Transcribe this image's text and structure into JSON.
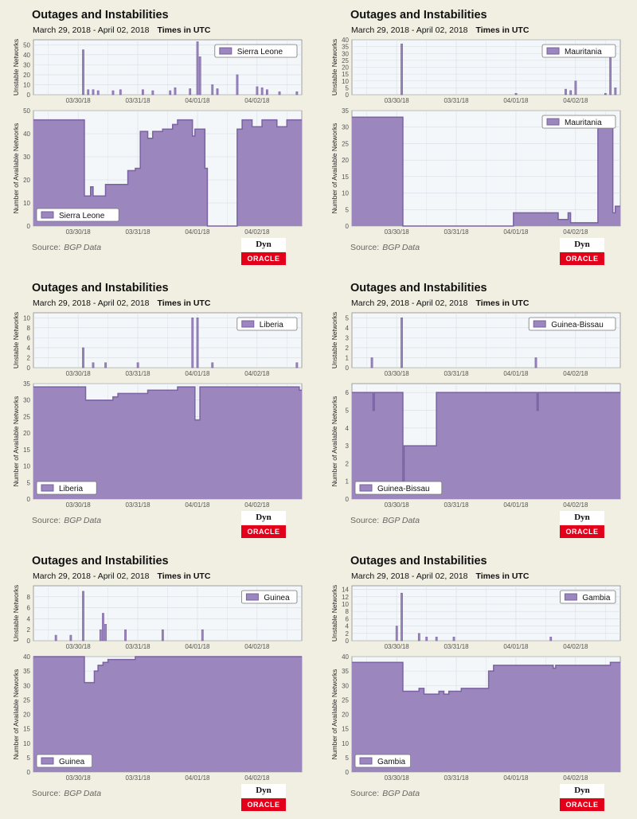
{
  "colors": {
    "fill": "#9b86bd",
    "stroke": "#7a62a3",
    "plot_bg": "#f4f7fa",
    "grid": "#d6dde6"
  },
  "panels": [
    {
      "title": "Outages and Instabilities",
      "date_range": "March 29, 2018 - April 02, 2018",
      "timezone": "Times in UTC",
      "source_label": "Source:",
      "source_value": "BGP Data",
      "logo_dyn": "Dyn",
      "logo_oracle": "ORACLE",
      "country": "Sierra Leone"
    },
    {
      "title": "Outages and Instabilities",
      "date_range": "March 29, 2018 - April 02, 2018",
      "timezone": "Times in UTC",
      "source_label": "Source:",
      "source_value": "BGP Data",
      "logo_dyn": "Dyn",
      "logo_oracle": "ORACLE",
      "country": "Mauritania"
    },
    {
      "title": "Outages and Instabilities",
      "date_range": "March 29, 2018 - April 02, 2018",
      "timezone": "Times in UTC",
      "source_label": "Source:",
      "source_value": "BGP Data",
      "logo_dyn": "Dyn",
      "logo_oracle": "ORACLE",
      "country": "Liberia"
    },
    {
      "title": "Outages and Instabilities",
      "date_range": "March 29, 2018 - April 02, 2018",
      "timezone": "Times in UTC",
      "source_label": "Source:",
      "source_value": "BGP Data",
      "logo_dyn": "Dyn",
      "logo_oracle": "ORACLE",
      "country": "Guinea-Bissau"
    },
    {
      "title": "Outages and Instabilities",
      "date_range": "March 29, 2018 - April 02, 2018",
      "timezone": "Times in UTC",
      "source_label": "Source:",
      "source_value": "BGP Data",
      "logo_dyn": "Dyn",
      "logo_oracle": "ORACLE",
      "country": "Guinea"
    },
    {
      "title": "Outages and Instabilities",
      "date_range": "March 29, 2018 - April 02, 2018",
      "timezone": "Times in UTC",
      "source_label": "Source:",
      "source_value": "BGP Data",
      "logo_dyn": "Dyn",
      "logo_oracle": "ORACLE",
      "country": "Gambia"
    }
  ],
  "chart_data": [
    {
      "type": "bar",
      "country": "Sierra Leone",
      "ylabel": "Unstable Networks",
      "x_range": [
        "2018-03-29T06:00",
        "2018-04-02T18:00"
      ],
      "ylim": [
        0,
        55
      ],
      "yticks": [
        0,
        10,
        20,
        30,
        40,
        50
      ],
      "xticks": [
        "03/30/18",
        "03/31/18",
        "04/01/18",
        "04/02/18"
      ],
      "legend": "top-right",
      "points": [
        [
          "2018-03-30T02:00",
          45
        ],
        [
          "2018-03-30T04:00",
          5
        ],
        [
          "2018-03-30T06:00",
          5
        ],
        [
          "2018-03-30T08:00",
          4
        ],
        [
          "2018-03-30T14:00",
          4
        ],
        [
          "2018-03-30T17:00",
          5
        ],
        [
          "2018-03-31T02:00",
          5
        ],
        [
          "2018-03-31T06:00",
          4
        ],
        [
          "2018-03-31T13:00",
          4
        ],
        [
          "2018-03-31T15:00",
          7
        ],
        [
          "2018-03-31T21:00",
          6
        ],
        [
          "2018-04-01T00:00",
          53
        ],
        [
          "2018-04-01T01:00",
          38
        ],
        [
          "2018-04-01T06:00",
          10
        ],
        [
          "2018-04-01T08:00",
          6
        ],
        [
          "2018-04-01T16:00",
          20
        ],
        [
          "2018-04-02T00:00",
          8
        ],
        [
          "2018-04-02T02:00",
          7
        ],
        [
          "2018-04-02T04:00",
          5
        ],
        [
          "2018-04-02T09:00",
          3
        ],
        [
          "2018-04-02T16:00",
          3
        ]
      ]
    },
    {
      "type": "area",
      "country": "Sierra Leone",
      "ylabel": "Number of Available Networks",
      "x_range": [
        "2018-03-29T06:00",
        "2018-04-02T18:00"
      ],
      "ylim": [
        0,
        50
      ],
      "yticks": [
        0,
        10,
        20,
        30,
        40,
        50
      ],
      "xticks": [
        "03/30/18",
        "03/31/18",
        "04/01/18",
        "04/02/18"
      ],
      "legend": "bottom-left",
      "points": [
        [
          "2018-03-29T06:00",
          46
        ],
        [
          "2018-03-30T02:00",
          46
        ],
        [
          "2018-03-30T02:30",
          13
        ],
        [
          "2018-03-30T05:00",
          17
        ],
        [
          "2018-03-30T06:00",
          13
        ],
        [
          "2018-03-30T10:00",
          13
        ],
        [
          "2018-03-30T11:00",
          18
        ],
        [
          "2018-03-30T19:00",
          18
        ],
        [
          "2018-03-30T20:00",
          24
        ],
        [
          "2018-03-30T23:00",
          25
        ],
        [
          "2018-03-31T01:00",
          41
        ],
        [
          "2018-03-31T04:00",
          38
        ],
        [
          "2018-03-31T06:00",
          41
        ],
        [
          "2018-03-31T10:00",
          42
        ],
        [
          "2018-03-31T14:00",
          44
        ],
        [
          "2018-03-31T16:00",
          46
        ],
        [
          "2018-03-31T22:00",
          39
        ],
        [
          "2018-03-31T23:00",
          42
        ],
        [
          "2018-04-01T02:00",
          42
        ],
        [
          "2018-04-01T03:00",
          25
        ],
        [
          "2018-04-01T04:00",
          0
        ],
        [
          "2018-04-01T15:00",
          0
        ],
        [
          "2018-04-01T16:00",
          42
        ],
        [
          "2018-04-01T18:00",
          46
        ],
        [
          "2018-04-01T22:00",
          43
        ],
        [
          "2018-04-02T02:00",
          46
        ],
        [
          "2018-04-02T08:00",
          43
        ],
        [
          "2018-04-02T12:00",
          46
        ],
        [
          "2018-04-02T18:00",
          46
        ]
      ]
    },
    {
      "type": "bar",
      "country": "Mauritania",
      "ylabel": "Unstable Networks",
      "x_range": [
        "2018-03-29T06:00",
        "2018-04-02T18:00"
      ],
      "ylim": [
        0,
        40
      ],
      "yticks": [
        0,
        5,
        10,
        15,
        20,
        25,
        30,
        35,
        40
      ],
      "xticks": [
        "03/30/18",
        "03/31/18",
        "04/01/18",
        "04/02/18"
      ],
      "legend": "top-right",
      "points": [
        [
          "2018-03-30T02:00",
          37
        ],
        [
          "2018-04-01T00:00",
          1
        ],
        [
          "2018-04-01T20:00",
          4
        ],
        [
          "2018-04-01T22:00",
          3
        ],
        [
          "2018-04-02T00:00",
          10
        ],
        [
          "2018-04-02T12:00",
          1
        ],
        [
          "2018-04-02T14:00",
          27
        ],
        [
          "2018-04-02T16:00",
          5
        ]
      ]
    },
    {
      "type": "area",
      "country": "Mauritania",
      "ylabel": "Number of Available Networks",
      "x_range": [
        "2018-03-29T06:00",
        "2018-04-02T18:00"
      ],
      "ylim": [
        0,
        35
      ],
      "yticks": [
        0,
        5,
        10,
        15,
        20,
        25,
        30,
        35
      ],
      "xticks": [
        "03/30/18",
        "03/31/18",
        "04/01/18",
        "04/02/18"
      ],
      "legend": "top-right",
      "points": [
        [
          "2018-03-29T06:00",
          33
        ],
        [
          "2018-03-30T02:00",
          33
        ],
        [
          "2018-03-30T02:30",
          0
        ],
        [
          "2018-03-31T22:00",
          0
        ],
        [
          "2018-03-31T23:00",
          4
        ],
        [
          "2018-04-01T16:00",
          4
        ],
        [
          "2018-04-01T17:00",
          2
        ],
        [
          "2018-04-01T21:00",
          4
        ],
        [
          "2018-04-01T22:00",
          1
        ],
        [
          "2018-04-02T08:00",
          1
        ],
        [
          "2018-04-02T09:00",
          30
        ],
        [
          "2018-04-02T14:00",
          30
        ],
        [
          "2018-04-02T15:00",
          4
        ],
        [
          "2018-04-02T16:00",
          6
        ],
        [
          "2018-04-02T18:00",
          6
        ]
      ]
    },
    {
      "type": "bar",
      "country": "Liberia",
      "ylabel": "Unstable Networks",
      "x_range": [
        "2018-03-29T06:00",
        "2018-04-02T18:00"
      ],
      "ylim": [
        0,
        11
      ],
      "yticks": [
        0,
        2,
        4,
        6,
        8,
        10
      ],
      "xticks": [
        "03/30/18",
        "03/31/18",
        "04/01/18",
        "04/02/18"
      ],
      "legend": "top-right",
      "points": [
        [
          "2018-03-30T02:00",
          4
        ],
        [
          "2018-03-30T06:00",
          1
        ],
        [
          "2018-03-30T11:00",
          1
        ],
        [
          "2018-03-31T00:00",
          1
        ],
        [
          "2018-03-31T22:00",
          10
        ],
        [
          "2018-04-01T00:00",
          10
        ],
        [
          "2018-04-01T06:00",
          1
        ],
        [
          "2018-04-02T16:00",
          1
        ]
      ]
    },
    {
      "type": "area",
      "country": "Liberia",
      "ylabel": "Number of Available Networks",
      "x_range": [
        "2018-03-29T06:00",
        "2018-04-02T18:00"
      ],
      "ylim": [
        0,
        35
      ],
      "yticks": [
        0,
        5,
        10,
        15,
        20,
        25,
        30,
        35
      ],
      "xticks": [
        "03/30/18",
        "03/31/18",
        "04/01/18",
        "04/02/18"
      ],
      "legend": "bottom-left",
      "points": [
        [
          "2018-03-29T06:00",
          34
        ],
        [
          "2018-03-30T02:00",
          34
        ],
        [
          "2018-03-30T03:00",
          30
        ],
        [
          "2018-03-30T12:00",
          30
        ],
        [
          "2018-03-30T14:00",
          31
        ],
        [
          "2018-03-30T16:00",
          32
        ],
        [
          "2018-03-31T04:00",
          33
        ],
        [
          "2018-03-31T16:00",
          34
        ],
        [
          "2018-03-31T22:00",
          34
        ],
        [
          "2018-03-31T23:00",
          24
        ],
        [
          "2018-04-01T00:00",
          24
        ],
        [
          "2018-04-01T01:00",
          34
        ],
        [
          "2018-04-02T16:00",
          34
        ],
        [
          "2018-04-02T17:00",
          33
        ],
        [
          "2018-04-02T18:00",
          33
        ]
      ]
    },
    {
      "type": "bar",
      "country": "Guinea-Bissau",
      "ylabel": "Unstable Networks",
      "x_range": [
        "2018-03-29T06:00",
        "2018-04-02T18:00"
      ],
      "ylim": [
        0,
        5.5
      ],
      "yticks": [
        0,
        1,
        2,
        3,
        4,
        5
      ],
      "xticks": [
        "03/30/18",
        "03/31/18",
        "04/01/18",
        "04/02/18"
      ],
      "legend": "top-right",
      "points": [
        [
          "2018-03-29T14:00",
          1
        ],
        [
          "2018-03-30T02:00",
          5
        ],
        [
          "2018-04-01T08:00",
          1
        ]
      ]
    },
    {
      "type": "area",
      "country": "Guinea-Bissau",
      "ylabel": "Number of Available Networks",
      "x_range": [
        "2018-03-29T06:00",
        "2018-04-02T18:00"
      ],
      "ylim": [
        0,
        6.5
      ],
      "yticks": [
        0,
        1,
        2,
        3,
        4,
        5,
        6
      ],
      "xticks": [
        "03/30/18",
        "03/31/18",
        "04/01/18",
        "04/02/18"
      ],
      "legend": "bottom-left",
      "points": [
        [
          "2018-03-29T06:00",
          6
        ],
        [
          "2018-03-29T14:00",
          6
        ],
        [
          "2018-03-29T14:30",
          5
        ],
        [
          "2018-03-29T15:00",
          6
        ],
        [
          "2018-03-30T02:00",
          6
        ],
        [
          "2018-03-30T02:30",
          1
        ],
        [
          "2018-03-30T03:00",
          3
        ],
        [
          "2018-03-30T15:00",
          3
        ],
        [
          "2018-03-30T16:00",
          6
        ],
        [
          "2018-04-01T08:00",
          6
        ],
        [
          "2018-04-01T08:30",
          5
        ],
        [
          "2018-04-01T09:00",
          6
        ],
        [
          "2018-04-02T18:00",
          6
        ]
      ]
    },
    {
      "type": "bar",
      "country": "Guinea",
      "ylabel": "Unstable Networks",
      "x_range": [
        "2018-03-29T06:00",
        "2018-04-02T18:00"
      ],
      "ylim": [
        0,
        10
      ],
      "yticks": [
        0,
        2,
        4,
        6,
        8
      ],
      "xticks": [
        "03/30/18",
        "03/31/18",
        "04/01/18",
        "04/02/18"
      ],
      "legend": "top-right",
      "points": [
        [
          "2018-03-29T15:00",
          1
        ],
        [
          "2018-03-29T21:00",
          1
        ],
        [
          "2018-03-30T02:00",
          9
        ],
        [
          "2018-03-30T09:00",
          2
        ],
        [
          "2018-03-30T10:00",
          5
        ],
        [
          "2018-03-30T11:00",
          3
        ],
        [
          "2018-03-30T19:00",
          2
        ],
        [
          "2018-03-31T10:00",
          2
        ],
        [
          "2018-04-01T02:00",
          2
        ]
      ]
    },
    {
      "type": "area",
      "country": "Guinea",
      "ylabel": "Number of Available Networks",
      "x_range": [
        "2018-03-29T06:00",
        "2018-04-02T18:00"
      ],
      "ylim": [
        0,
        40
      ],
      "yticks": [
        0,
        5,
        10,
        15,
        20,
        25,
        30,
        35,
        40
      ],
      "xticks": [
        "03/30/18",
        "03/31/18",
        "04/01/18",
        "04/02/18"
      ],
      "legend": "bottom-left",
      "points": [
        [
          "2018-03-29T06:00",
          40
        ],
        [
          "2018-03-30T02:00",
          40
        ],
        [
          "2018-03-30T02:30",
          31
        ],
        [
          "2018-03-30T06:00",
          31
        ],
        [
          "2018-03-30T06:30",
          35
        ],
        [
          "2018-03-30T08:00",
          37
        ],
        [
          "2018-03-30T10:00",
          38
        ],
        [
          "2018-03-30T12:00",
          39
        ],
        [
          "2018-03-30T22:00",
          39
        ],
        [
          "2018-03-30T23:00",
          40
        ],
        [
          "2018-04-02T18:00",
          40
        ]
      ]
    },
    {
      "type": "bar",
      "country": "Gambia",
      "ylabel": "Unstable Networks",
      "x_range": [
        "2018-03-29T06:00",
        "2018-04-02T18:00"
      ],
      "ylim": [
        0,
        15
      ],
      "yticks": [
        0,
        2,
        4,
        6,
        8,
        10,
        12,
        14
      ],
      "xticks": [
        "03/30/18",
        "03/31/18",
        "04/01/18",
        "04/02/18"
      ],
      "legend": "top-right",
      "points": [
        [
          "2018-03-30T00:00",
          4
        ],
        [
          "2018-03-30T02:00",
          13
        ],
        [
          "2018-03-30T09:00",
          2
        ],
        [
          "2018-03-30T12:00",
          1
        ],
        [
          "2018-03-30T16:00",
          1
        ],
        [
          "2018-03-30T23:00",
          1
        ],
        [
          "2018-04-01T14:00",
          1
        ]
      ]
    },
    {
      "type": "area",
      "country": "Gambia",
      "ylabel": "Number of Available Networks",
      "x_range": [
        "2018-03-29T06:00",
        "2018-04-02T18:00"
      ],
      "ylim": [
        0,
        40
      ],
      "yticks": [
        0,
        5,
        10,
        15,
        20,
        25,
        30,
        35,
        40
      ],
      "xticks": [
        "03/30/18",
        "03/31/18",
        "04/01/18",
        "04/02/18"
      ],
      "legend": "bottom-left",
      "points": [
        [
          "2018-03-29T06:00",
          38
        ],
        [
          "2018-03-30T02:00",
          38
        ],
        [
          "2018-03-30T02:30",
          28
        ],
        [
          "2018-03-30T08:00",
          28
        ],
        [
          "2018-03-30T09:00",
          29
        ],
        [
          "2018-03-30T11:00",
          27
        ],
        [
          "2018-03-30T17:00",
          28
        ],
        [
          "2018-03-30T19:00",
          27
        ],
        [
          "2018-03-30T21:00",
          28
        ],
        [
          "2018-03-31T02:00",
          29
        ],
        [
          "2018-03-31T12:00",
          29
        ],
        [
          "2018-03-31T13:00",
          35
        ],
        [
          "2018-03-31T15:00",
          37
        ],
        [
          "2018-04-01T14:00",
          37
        ],
        [
          "2018-04-01T15:00",
          36
        ],
        [
          "2018-04-01T16:00",
          37
        ],
        [
          "2018-04-02T12:00",
          37
        ],
        [
          "2018-04-02T14:00",
          38
        ],
        [
          "2018-04-02T18:00",
          38
        ]
      ]
    }
  ]
}
